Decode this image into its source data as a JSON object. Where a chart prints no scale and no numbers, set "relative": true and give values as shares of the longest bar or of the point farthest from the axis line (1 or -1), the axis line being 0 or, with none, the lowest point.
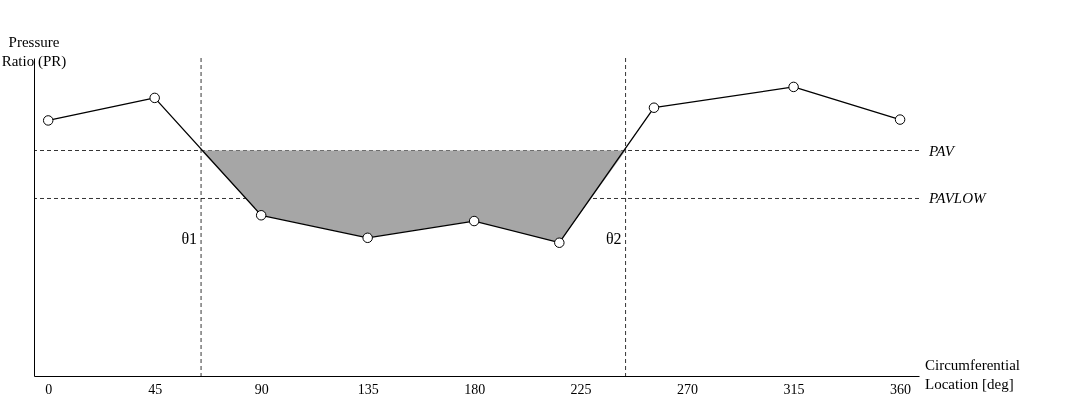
{
  "chart_data": {
    "type": "line",
    "relative": true,
    "xlabel": "Circumferential Location [deg]",
    "ylabel": "Pressure Ratio (PR)",
    "x": [
      0,
      45,
      90,
      135,
      180,
      216,
      256,
      315,
      360
    ],
    "xlim": [
      -6,
      368
    ],
    "xticks": [
      0,
      45,
      90,
      135,
      180,
      225,
      270,
      315,
      360
    ],
    "grid": false,
    "marker": "circle",
    "series": [
      {
        "color": "#000000",
        "values": [
          0.884,
          0.962,
          0.556,
          0.478,
          0.536,
          0.461,
          0.928,
          1.0,
          0.887
        ]
      },
      {
        "type": "area",
        "color": "#a6a6a6",
        "marker": "none",
        "x": [
          64.6,
          90,
          135,
          180,
          216,
          244
        ],
        "values": [
          0.78,
          0.556,
          0.478,
          0.536,
          0.461,
          0.78
        ]
      }
    ],
    "ref_lines": [
      {
        "axis": "y",
        "value": 0.78,
        "label": "PAV",
        "line_style": "dashed"
      },
      {
        "axis": "y",
        "value": 0.614,
        "label": "PAVLOW",
        "line_style": "dashed"
      },
      {
        "axis": "x",
        "value": 64.6,
        "label": "θ1",
        "line_style": "dashed"
      },
      {
        "axis": "x",
        "value": 244,
        "label": "θ2",
        "line_style": "dashed"
      }
    ]
  }
}
